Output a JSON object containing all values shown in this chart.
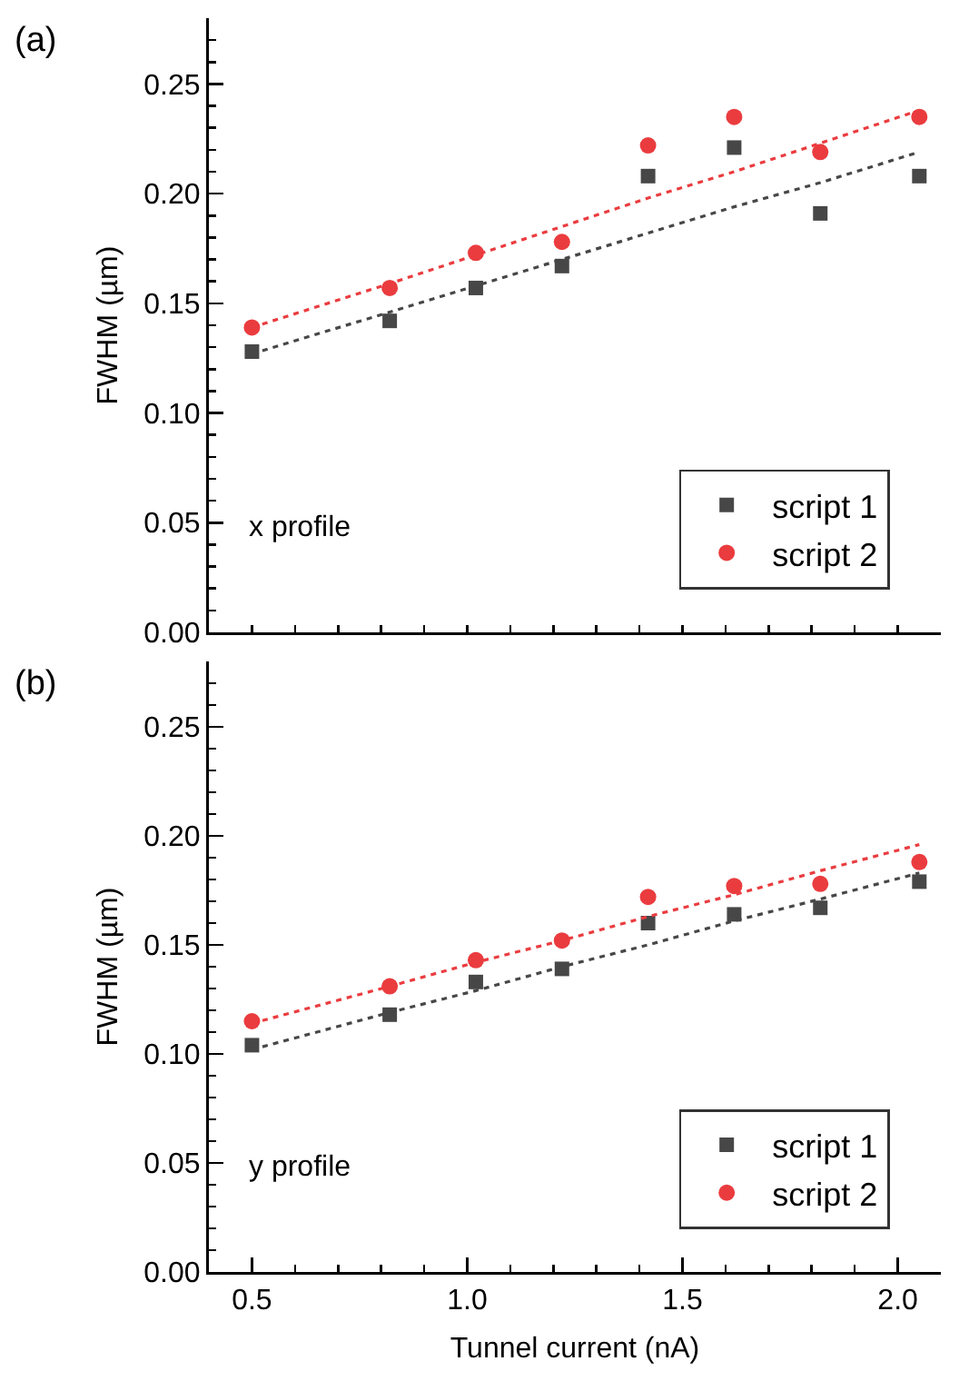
{
  "chart_data": [
    {
      "type": "scatter",
      "ylabel": "FWHM (µm)",
      "x": [
        0.5,
        0.82,
        1.02,
        1.22,
        1.42,
        1.62,
        1.82,
        2.05
      ],
      "series": [
        {
          "name": "script 1",
          "color": "#474747",
          "marker": "square",
          "values": [
            0.128,
            0.142,
            0.157,
            0.167,
            0.208,
            0.221,
            0.191,
            0.208
          ]
        },
        {
          "name": "script 2",
          "color": "#ea3c3f",
          "marker": "circle",
          "values": [
            0.139,
            0.157,
            0.173,
            0.178,
            0.222,
            0.235,
            0.219,
            0.235
          ]
        },
        {
          "type": "line",
          "color": "#474747",
          "line_style": "dotted",
          "values": [
            0.127,
            0.146,
            0.158,
            0.17,
            0.182,
            0.194,
            0.205,
            0.219
          ]
        },
        {
          "type": "line",
          "color": "#ea3c3f",
          "line_style": "dotted",
          "values": [
            0.139,
            0.159,
            0.172,
            0.185,
            0.198,
            0.21,
            0.223,
            0.238
          ]
        }
      ],
      "annotations": [
        "(a)",
        "x profile"
      ],
      "xlim": [
        0.4,
        2.1
      ],
      "xticks": [
        {
          "value": 0.5,
          "label": null
        },
        {
          "value": 1.0,
          "label": null
        },
        {
          "value": 1.5,
          "label": null
        },
        {
          "value": 2.0,
          "label": null
        }
      ],
      "ylim": [
        0,
        0.28
      ],
      "yticks": [
        {
          "value": 0,
          "label": "0.00"
        },
        {
          "value": 0.05,
          "label": "0.05"
        },
        {
          "value": 0.1,
          "label": "0.10"
        },
        {
          "value": 0.15,
          "label": "0.15"
        },
        {
          "value": 0.2,
          "label": "0.20"
        },
        {
          "value": 0.25,
          "label": "0.25"
        }
      ],
      "tick_labels": "y",
      "grid": false,
      "legend": "bottom right"
    },
    {
      "type": "scatter",
      "xlabel": "Tunnel current (nA)",
      "ylabel": "FWHM (µm)",
      "x": [
        0.5,
        0.82,
        1.02,
        1.22,
        1.42,
        1.62,
        1.82,
        2.05
      ],
      "series": [
        {
          "name": "script 1",
          "color": "#474747",
          "marker": "square",
          "values": [
            0.104,
            0.118,
            0.133,
            0.139,
            0.16,
            0.164,
            0.167,
            0.179
          ]
        },
        {
          "name": "script 2",
          "color": "#ea3c3f",
          "marker": "circle",
          "values": [
            0.115,
            0.131,
            0.143,
            0.152,
            0.172,
            0.177,
            0.178,
            0.188
          ]
        },
        {
          "type": "line",
          "color": "#474747",
          "line_style": "dotted",
          "values": [
            0.102,
            0.119,
            0.129,
            0.14,
            0.15,
            0.161,
            0.171,
            0.183
          ]
        },
        {
          "type": "line",
          "color": "#ea3c3f",
          "line_style": "dotted",
          "values": [
            0.114,
            0.131,
            0.142,
            0.152,
            0.163,
            0.173,
            0.184,
            0.196
          ]
        }
      ],
      "annotations": [
        "(b)",
        "y profile"
      ],
      "xlim": [
        0.4,
        2.1
      ],
      "xticks": [
        {
          "value": 0.5,
          "label": "0.5"
        },
        {
          "value": 1.0,
          "label": "1.0"
        },
        {
          "value": 1.5,
          "label": "1.5"
        },
        {
          "value": 2.0,
          "label": "2.0"
        }
      ],
      "ylim": [
        0,
        0.28
      ],
      "yticks": [
        {
          "value": 0,
          "label": "0.00"
        },
        {
          "value": 0.05,
          "label": "0.05"
        },
        {
          "value": 0.1,
          "label": "0.10"
        },
        {
          "value": 0.15,
          "label": "0.15"
        },
        {
          "value": 0.2,
          "label": "0.20"
        },
        {
          "value": 0.25,
          "label": "0.25"
        }
      ],
      "grid": false,
      "legend": "bottom right"
    }
  ]
}
